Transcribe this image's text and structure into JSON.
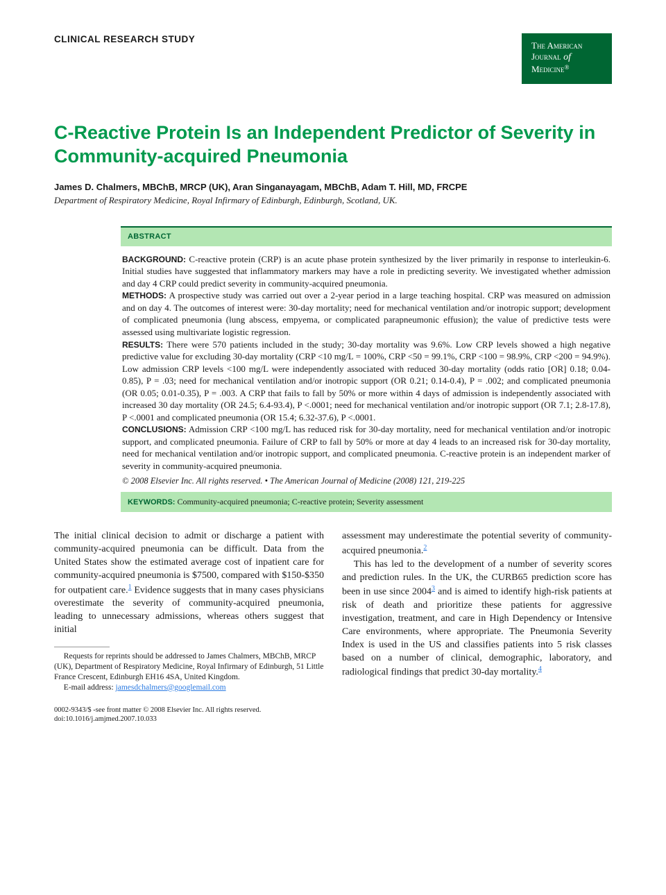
{
  "section_label": "CLINICAL RESEARCH STUDY",
  "journal_badge": {
    "line1": "The American",
    "line2_a": "Journal",
    "line2_b": " of",
    "line3": "Medicine",
    "reg": "®",
    "background_color": "#006633",
    "text_color": "#ffffff"
  },
  "title": "C-Reactive Protein Is an Independent Predictor of Severity in Community-acquired Pneumonia",
  "title_color": "#00994d",
  "authors": "James D. Chalmers, MBChB, MRCP (UK), Aran Singanayagam, MBChB, Adam T. Hill, MD, FRCPE",
  "affiliation": "Department of Respiratory Medicine, Royal Infirmary of Edinburgh, Edinburgh, Scotland, UK.",
  "abstract": {
    "header": "ABSTRACT",
    "header_bg": "#b3e6b3",
    "header_border": "#006633",
    "sections": {
      "background_label": "BACKGROUND:",
      "background_text": " C-reactive protein (CRP) is an acute phase protein synthesized by the liver primarily in response to interleukin-6. Initial studies have suggested that inflammatory markers may have a role in predicting severity. We investigated whether admission and day 4 CRP could predict severity in community-acquired pneumonia.",
      "methods_label": "METHODS:",
      "methods_text": " A prospective study was carried out over a 2-year period in a large teaching hospital. CRP was measured on admission and on day 4. The outcomes of interest were: 30-day mortality; need for mechanical ventilation and/or inotropic support; development of complicated pneumonia (lung abscess, empyema, or complicated parapneumonic effusion); the value of predictive tests were assessed using multivariate logistic regression.",
      "results_label": "RESULTS:",
      "results_text": " There were 570 patients included in the study; 30-day mortality was 9.6%. Low CRP levels showed a high negative predictive value for excluding 30-day mortality (CRP <10 mg/L = 100%, CRP <50 = 99.1%, CRP <100 = 98.9%, CRP <200 = 94.9%). Low admission CRP levels <100 mg/L were independently associated with reduced 30-day mortality (odds ratio [OR] 0.18; 0.04-0.85), P = .03; need for mechanical ventilation and/or inotropic support (OR 0.21; 0.14-0.4), P = .002; and complicated pneumonia (OR 0.05; 0.01-0.35), P = .003. A CRP that fails to fall by 50% or more within 4 days of admission is independently associated with increased 30 day mortality (OR 24.5; 6.4-93.4), P <.0001; need for mechanical ventilation and/or inotropic support (OR 7.1; 2.8-17.8), P <.0001 and complicated pneumonia (OR 15.4; 6.32-37.6), P <.0001.",
      "conclusions_label": "CONCLUSIONS:",
      "conclusions_text": " Admission CRP <100 mg/L has reduced risk for 30-day mortality, need for mechanical ventilation and/or inotropic support, and complicated pneumonia. Failure of CRP to fall by 50% or more at day 4 leads to an increased risk for 30-day mortality, need for mechanical ventilation and/or inotropic support, and complicated pneumonia. C-reactive protein is an independent marker of severity in community-acquired pneumonia."
    },
    "copyright": "© 2008 Elsevier Inc. All rights reserved. • The American Journal of Medicine (2008) 121, 219-225"
  },
  "keywords": {
    "label": "KEYWORDS:",
    "text": " Community-acquired pneumonia; C-reactive protein; Severity assessment",
    "bg": "#b3e6b3"
  },
  "body": {
    "col1_p1_a": "The initial clinical decision to admit or discharge a patient with community-acquired pneumonia can be difficult. Data from the United States show the estimated average cost of inpatient care for community-acquired pneumonia is $7500, compared with $150-$350 for outpatient care.",
    "ref1": "1",
    "col1_p1_b": " Evidence suggests that in many cases physicians overestimate the severity of community-acquired pneumonia, leading to unnecessary admissions, whereas others suggest that initial",
    "col2_p1_a": "assessment may underestimate the potential severity of community-acquired pneumonia.",
    "ref2": "2",
    "col2_p2_a": "This has led to the development of a number of severity scores and prediction rules. In the UK, the CURB65 prediction score has been in use since 2004",
    "ref3": "3",
    "col2_p2_b": " and is aimed to identify high-risk patients at risk of death and prioritize these patients for aggressive investigation, treatment, and care in High Dependency or Intensive Care environments, where appropriate. The Pneumonia Severity Index is used in the US and classifies patients into 5 risk classes based on a number of clinical, demographic, laboratory, and radiological findings that predict 30-day mortality.",
    "ref4": "4"
  },
  "footnote": {
    "reprint": "Requests for reprints should be addressed to James Chalmers, MBChB, MRCP (UK), Department of Respiratory Medicine, Royal Infirmary of Edinburgh, 51 Little France Crescent, Edinburgh EH16 4SA, United Kingdom.",
    "email_label": "E-mail address: ",
    "email": "jamesdchalmers@googlemail.com"
  },
  "footer": {
    "line1": "0002-9343/$ -see front matter © 2008 Elsevier Inc. All rights reserved.",
    "line2": "doi:10.1016/j.amjmed.2007.10.033"
  },
  "link_color": "#2a7ae2"
}
